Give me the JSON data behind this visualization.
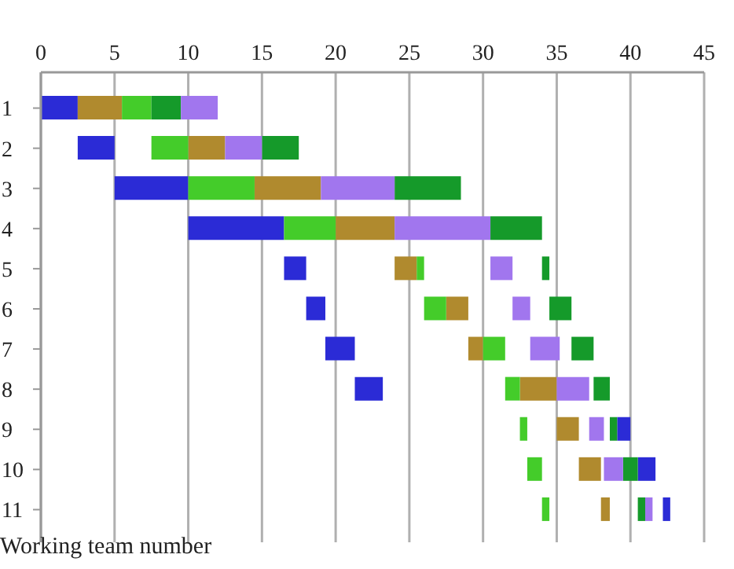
{
  "chart_data": {
    "type": "bar",
    "orientation": "horizontal",
    "ylabel": "Working team number",
    "categories": [
      "1",
      "2",
      "3",
      "4",
      "5",
      "6",
      "7",
      "8",
      "9",
      "10",
      "11"
    ],
    "series": [
      {
        "color": "#2b2bd6",
        "base": [
          0,
          2.5,
          5,
          10,
          16.5,
          18,
          19.3,
          21.3,
          39.1,
          40.5,
          42.2
        ],
        "values": [
          2.5,
          2.5,
          5,
          6.5,
          1.5,
          1.3,
          2,
          1.9,
          0.9,
          1.2,
          0.5
        ]
      },
      {
        "color": "#b08a2e",
        "base": [
          2.5,
          10,
          14.5,
          20,
          24,
          27.5,
          29,
          32.5,
          35,
          36.5,
          38
        ],
        "values": [
          3,
          2.5,
          4.5,
          4,
          1.5,
          1.5,
          1,
          2.5,
          1.5,
          1.5,
          0.6
        ]
      },
      {
        "color": "#44cc2a",
        "base": [
          5.5,
          7.5,
          10,
          16.5,
          25.5,
          26,
          30,
          31.5,
          32.5,
          33,
          34
        ],
        "values": [
          2,
          2.5,
          4.5,
          3.5,
          0.5,
          1.5,
          1.5,
          1,
          0.5,
          1,
          0.5
        ]
      },
      {
        "color": "#159a2a",
        "base": [
          7.5,
          15,
          24,
          30.5,
          34,
          34.5,
          36,
          37.5,
          38.6,
          39.5,
          40.5
        ],
        "values": [
          2,
          2.5,
          4.5,
          3.5,
          0.5,
          1.5,
          1.5,
          1.1,
          0.5,
          1,
          0.5
        ]
      },
      {
        "color": "#a176ee",
        "base": [
          9.5,
          12.5,
          19,
          24,
          30.5,
          32,
          33.2,
          35,
          37.2,
          38.2,
          41
        ],
        "values": [
          2.5,
          2.5,
          5,
          6.5,
          1.5,
          1.2,
          2,
          2.2,
          1,
          1.3,
          0.5
        ]
      }
    ],
    "xlim": [
      0,
      45
    ],
    "xticks": [
      0,
      5,
      10,
      15,
      20,
      25,
      30,
      35,
      40,
      45
    ],
    "grid": "x"
  }
}
